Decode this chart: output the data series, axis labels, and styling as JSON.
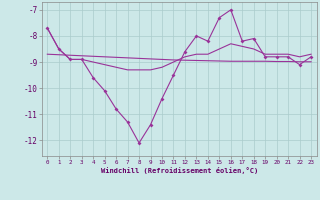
{
  "background_color": "#cce8e8",
  "grid_color": "#aacccc",
  "line_color": "#993399",
  "xlabel": "Windchill (Refroidissement éolien,°C)",
  "xlim": [
    -0.5,
    23.5
  ],
  "ylim": [
    -12.6,
    -6.7
  ],
  "yticks": [
    -12,
    -11,
    -10,
    -9,
    -8,
    -7
  ],
  "xticks": [
    0,
    1,
    2,
    3,
    4,
    5,
    6,
    7,
    8,
    9,
    10,
    11,
    12,
    13,
    14,
    15,
    16,
    17,
    18,
    19,
    20,
    21,
    22,
    23
  ],
  "hours": [
    0,
    1,
    2,
    3,
    4,
    5,
    6,
    7,
    8,
    9,
    10,
    11,
    12,
    13,
    14,
    15,
    16,
    17,
    18,
    19,
    20,
    21,
    22,
    23
  ],
  "windchill": [
    -7.7,
    -8.5,
    -8.9,
    -8.9,
    -9.6,
    -10.1,
    -10.8,
    -11.3,
    -12.1,
    -11.4,
    -10.4,
    -9.5,
    -8.6,
    -8.0,
    -8.2,
    -7.3,
    -7.0,
    -8.2,
    -8.1,
    -8.8,
    -8.8,
    -8.8,
    -9.1,
    -8.8
  ],
  "temp": [
    -7.7,
    -8.5,
    -8.9,
    -8.9,
    -9.0,
    -9.1,
    -9.2,
    -9.3,
    -9.3,
    -9.3,
    -9.2,
    -9.0,
    -8.8,
    -8.7,
    -8.7,
    -8.5,
    -8.3,
    -8.4,
    -8.5,
    -8.7,
    -8.7,
    -8.7,
    -8.8,
    -8.7
  ],
  "regression": [
    -8.7,
    -8.72,
    -8.74,
    -8.76,
    -8.78,
    -8.8,
    -8.82,
    -8.84,
    -8.86,
    -8.88,
    -8.9,
    -8.92,
    -8.93,
    -8.94,
    -8.95,
    -8.96,
    -8.97,
    -8.97,
    -8.97,
    -8.97,
    -8.98,
    -8.98,
    -8.99,
    -8.99
  ]
}
